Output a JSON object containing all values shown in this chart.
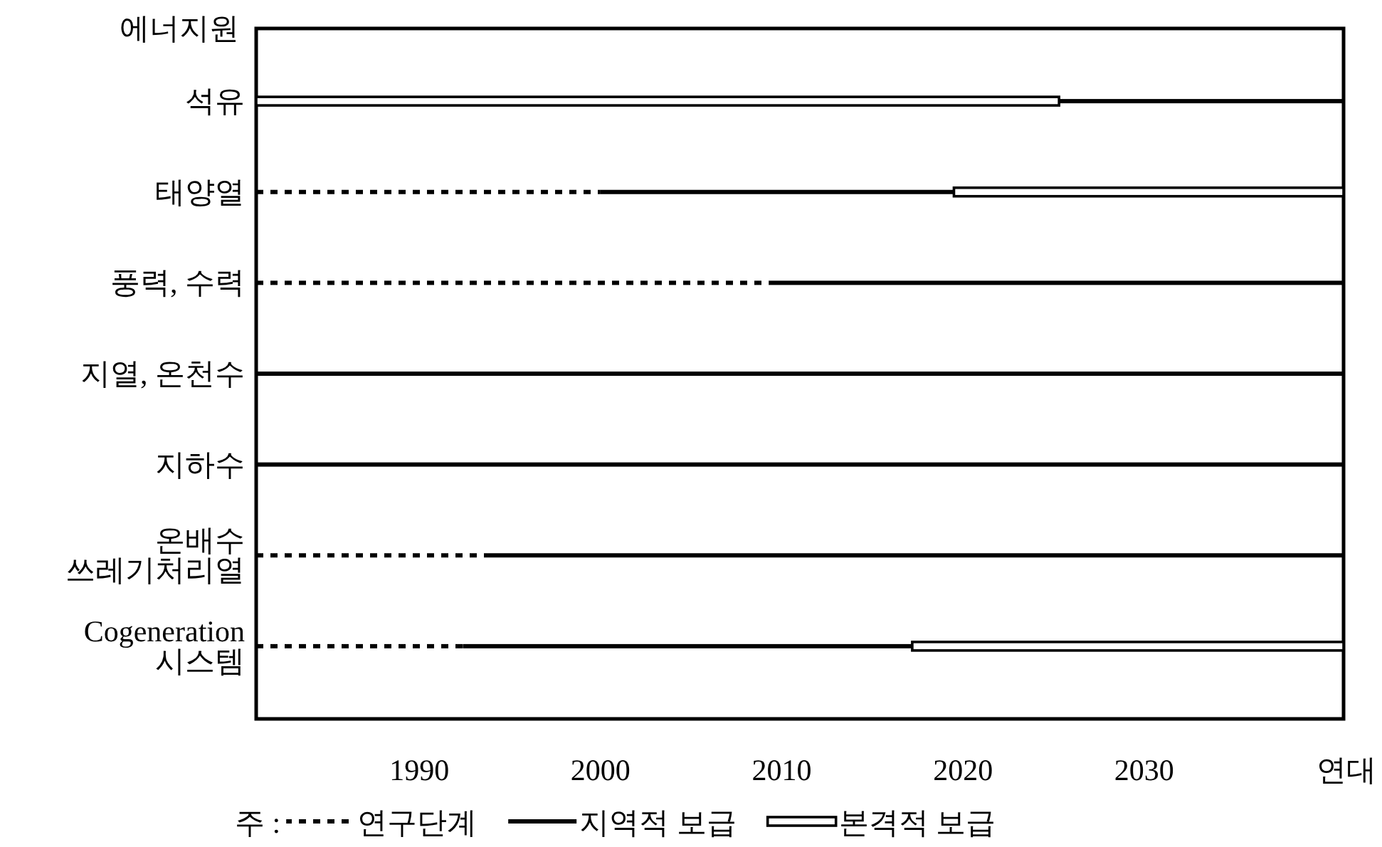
{
  "chart_data": {
    "type": "bar",
    "orientation": "horizontal",
    "ylabel": "에너지원",
    "xlabel": "연대",
    "legend_title": "주 :",
    "legend": "bottom",
    "grid": false,
    "categories": [
      "석유",
      "태양열",
      "풍력, 수력",
      "지열, 온천수",
      "지하수",
      "온배수\n쓰레기처리열",
      "Cogeneration\n시스템"
    ],
    "xlim": [
      1981,
      2041
    ],
    "xticks": [
      1990,
      2000,
      2010,
      2020,
      2030
    ],
    "series": [
      {
        "name": "연구단계",
        "color": "#000000",
        "line_style": "dotted",
        "base": [
          null,
          1981,
          1981,
          null,
          null,
          1981,
          1981
        ],
        "values": [
          null,
          19,
          28.3,
          null,
          null,
          12.8,
          11.4
        ]
      },
      {
        "name": "지역적 보급",
        "color": "#000000",
        "line_style": "solid",
        "base": [
          2025.3,
          2000,
          2009.3,
          1981,
          1981,
          1993.8,
          1992.4
        ],
        "values": [
          15.7,
          19.5,
          31.7,
          60,
          60,
          47.2,
          24.8
        ]
      },
      {
        "name": "본격적 보급",
        "color": "#000000",
        "line_style": "double",
        "base": [
          1981,
          2019.5,
          null,
          null,
          null,
          null,
          2017.2
        ],
        "values": [
          44.3,
          21.5,
          null,
          null,
          null,
          null,
          23.8
        ]
      }
    ]
  }
}
